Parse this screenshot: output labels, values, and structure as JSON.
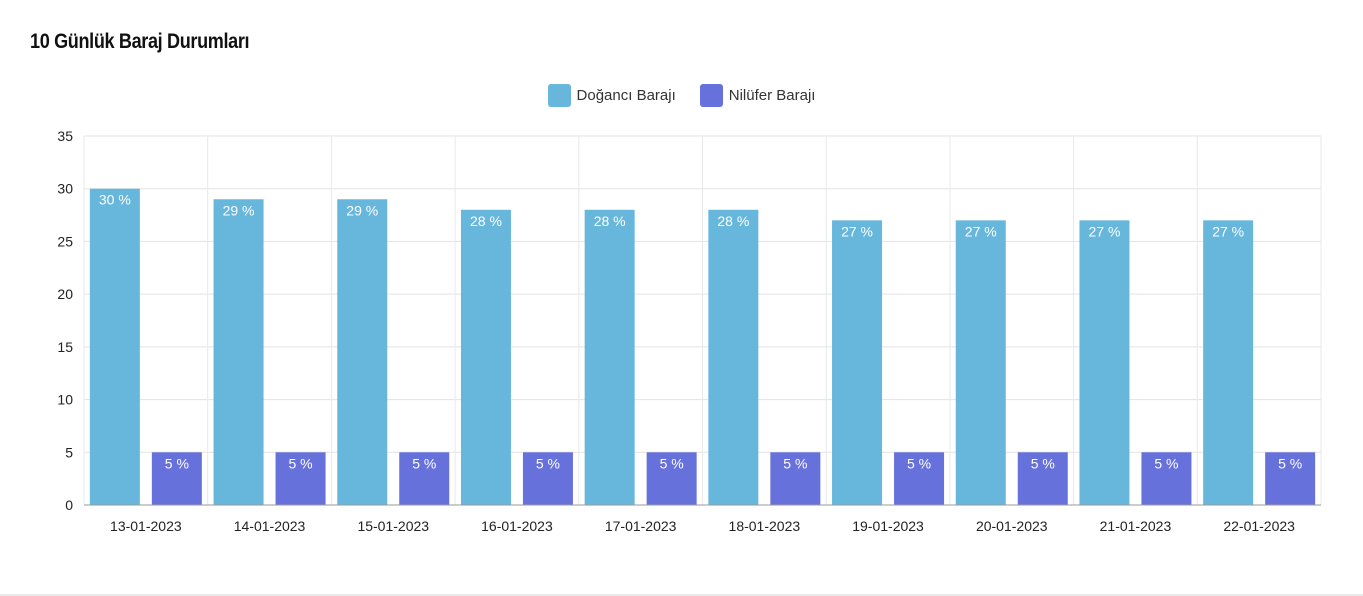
{
  "title": "10 Günlük Baraj Durumları",
  "chart_data": {
    "type": "bar",
    "categories": [
      "13-01-2023",
      "14-01-2023",
      "15-01-2023",
      "16-01-2023",
      "17-01-2023",
      "18-01-2023",
      "19-01-2023",
      "20-01-2023",
      "21-01-2023",
      "22-01-2023"
    ],
    "series": [
      {
        "name": "Doğancı Barajı",
        "color": "#67b7dc",
        "values": [
          30,
          29,
          29,
          28,
          28,
          28,
          27,
          27,
          27,
          27
        ],
        "labels": [
          "30 %",
          "29 %",
          "29 %",
          "28 %",
          "28 %",
          "28 %",
          "27 %",
          "27 %",
          "27 %",
          "27 %"
        ]
      },
      {
        "name": "Nilüfer Barajı",
        "color": "#6771dc",
        "values": [
          5,
          5,
          5,
          5,
          5,
          5,
          5,
          5,
          5,
          5
        ],
        "labels": [
          "5 %",
          "5 %",
          "5 %",
          "5 %",
          "5 %",
          "5 %",
          "5 %",
          "5 %",
          "5 %",
          "5 %"
        ]
      }
    ],
    "ylim": [
      0,
      35
    ],
    "yticks": [
      "0",
      "5",
      "10",
      "15",
      "20",
      "25",
      "30",
      "35"
    ],
    "grid": true,
    "legend_position": "top-center",
    "xlabel": "",
    "ylabel": ""
  }
}
